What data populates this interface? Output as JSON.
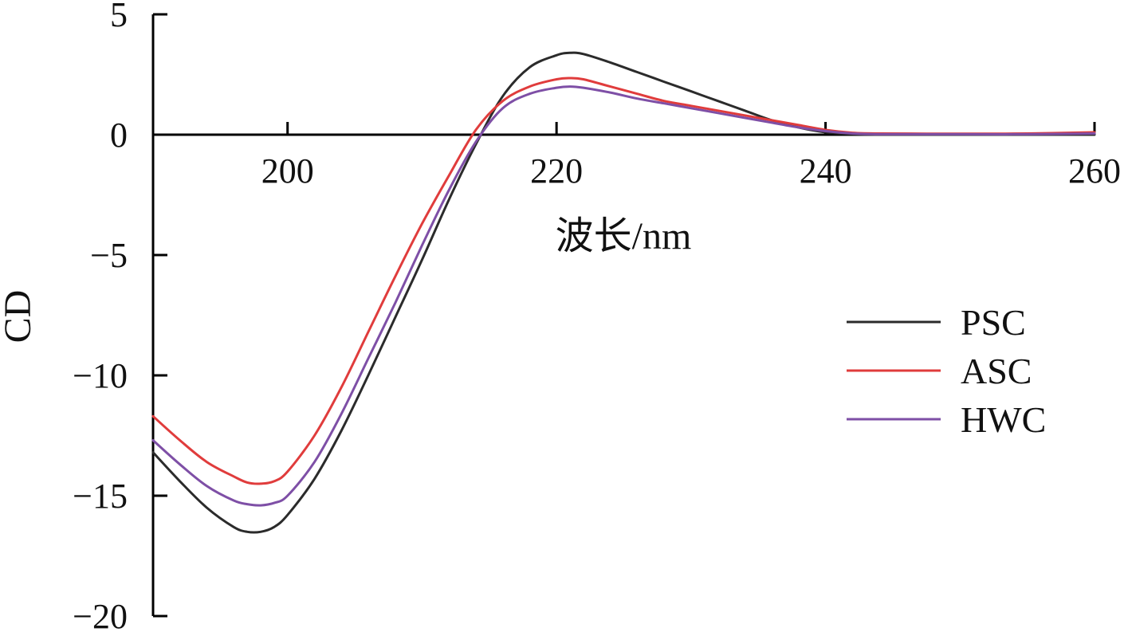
{
  "chart_data": {
    "type": "line",
    "xlabel": "波长/nm",
    "ylabel": "CD",
    "xlim": [
      190,
      260
    ],
    "ylim": [
      -20,
      5
    ],
    "x_ticks": [
      200,
      220,
      240,
      260
    ],
    "y_ticks": [
      5,
      0,
      -5,
      -10,
      -15,
      -20
    ],
    "grid": false,
    "legend_position": "right",
    "series": [
      {
        "name": "PSC",
        "color": "#2b2b2b",
        "points": [
          [
            190,
            -13.2
          ],
          [
            192,
            -14.4
          ],
          [
            194,
            -15.5
          ],
          [
            196,
            -16.3
          ],
          [
            197,
            -16.5
          ],
          [
            198,
            -16.5
          ],
          [
            199,
            -16.3
          ],
          [
            200,
            -15.8
          ],
          [
            202,
            -14.3
          ],
          [
            204,
            -12.3
          ],
          [
            206,
            -10.0
          ],
          [
            208,
            -7.6
          ],
          [
            210,
            -5.2
          ],
          [
            212,
            -2.7
          ],
          [
            214,
            -0.4
          ],
          [
            216,
            1.6
          ],
          [
            218,
            2.8
          ],
          [
            220,
            3.3
          ],
          [
            221,
            3.4
          ],
          [
            222,
            3.35
          ],
          [
            224,
            3.0
          ],
          [
            226,
            2.6
          ],
          [
            228,
            2.2
          ],
          [
            230,
            1.8
          ],
          [
            232,
            1.4
          ],
          [
            234,
            1.0
          ],
          [
            236,
            0.6
          ],
          [
            238,
            0.3
          ],
          [
            240,
            0.1
          ],
          [
            242,
            0.03
          ],
          [
            244,
            0.0
          ],
          [
            250,
            0.0
          ],
          [
            255,
            0.0
          ],
          [
            260,
            0.0
          ]
        ]
      },
      {
        "name": "ASC",
        "color": "#e03c3c",
        "points": [
          [
            190,
            -11.7
          ],
          [
            192,
            -12.7
          ],
          [
            194,
            -13.6
          ],
          [
            196,
            -14.2
          ],
          [
            197,
            -14.45
          ],
          [
            198,
            -14.5
          ],
          [
            199,
            -14.4
          ],
          [
            200,
            -14.0
          ],
          [
            202,
            -12.5
          ],
          [
            204,
            -10.5
          ],
          [
            206,
            -8.2
          ],
          [
            208,
            -5.9
          ],
          [
            210,
            -3.7
          ],
          [
            212,
            -1.7
          ],
          [
            214,
            0.2
          ],
          [
            216,
            1.4
          ],
          [
            218,
            2.0
          ],
          [
            220,
            2.3
          ],
          [
            221,
            2.35
          ],
          [
            222,
            2.3
          ],
          [
            224,
            2.0
          ],
          [
            226,
            1.7
          ],
          [
            228,
            1.4
          ],
          [
            230,
            1.2
          ],
          [
            232,
            1.0
          ],
          [
            234,
            0.8
          ],
          [
            236,
            0.6
          ],
          [
            238,
            0.4
          ],
          [
            240,
            0.2
          ],
          [
            242,
            0.08
          ],
          [
            244,
            0.05
          ],
          [
            250,
            0.04
          ],
          [
            255,
            0.05
          ],
          [
            260,
            0.1
          ]
        ]
      },
      {
        "name": "HWC",
        "color": "#7e4fa6",
        "points": [
          [
            190,
            -12.7
          ],
          [
            192,
            -13.7
          ],
          [
            194,
            -14.6
          ],
          [
            196,
            -15.2
          ],
          [
            197,
            -15.35
          ],
          [
            198,
            -15.4
          ],
          [
            199,
            -15.3
          ],
          [
            200,
            -15.0
          ],
          [
            202,
            -13.6
          ],
          [
            204,
            -11.6
          ],
          [
            206,
            -9.3
          ],
          [
            208,
            -7.0
          ],
          [
            210,
            -4.6
          ],
          [
            212,
            -2.3
          ],
          [
            214,
            -0.3
          ],
          [
            216,
            1.1
          ],
          [
            218,
            1.7
          ],
          [
            220,
            1.95
          ],
          [
            221,
            2.0
          ],
          [
            222,
            1.95
          ],
          [
            224,
            1.75
          ],
          [
            226,
            1.5
          ],
          [
            228,
            1.3
          ],
          [
            230,
            1.1
          ],
          [
            232,
            0.9
          ],
          [
            234,
            0.7
          ],
          [
            236,
            0.5
          ],
          [
            238,
            0.3
          ],
          [
            240,
            0.15
          ],
          [
            242,
            0.05
          ],
          [
            244,
            0.02
          ],
          [
            250,
            0.02
          ],
          [
            255,
            0.02
          ],
          [
            260,
            0.05
          ]
        ]
      }
    ]
  }
}
